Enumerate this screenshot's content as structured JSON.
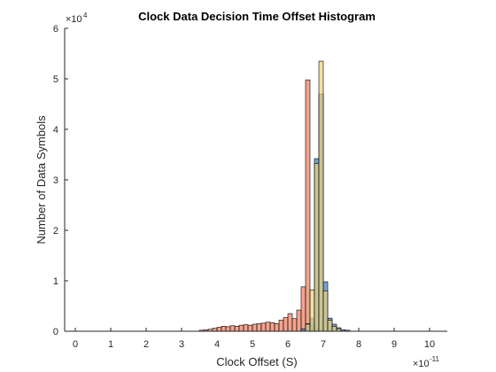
{
  "chart_data": {
    "type": "bar",
    "title": "Clock Data Decision Time Offset Histogram",
    "xlabel": "Clock Offset (S)",
    "ylabel": "Number of Data Symbols",
    "x_exponent_prefix": "×10",
    "x_exponent_power": "-11",
    "y_exponent_prefix": "×10",
    "y_exponent_power": "4",
    "xlim": [
      -0.3,
      10.5
    ],
    "ylim": [
      0,
      6
    ],
    "x_ticks": [
      "0",
      "1",
      "2",
      "3",
      "4",
      "5",
      "6",
      "7",
      "8",
      "9",
      "10"
    ],
    "y_ticks": [
      "0",
      "1",
      "2",
      "3",
      "4",
      "5",
      "6"
    ],
    "grid": false,
    "series": [
      {
        "color": "#ee7c5e",
        "bin_width": 0.125,
        "bins": [
          [
            3.5,
            0.02
          ],
          [
            3.625,
            0.03
          ],
          [
            3.75,
            0.04
          ],
          [
            3.875,
            0.06
          ],
          [
            4.0,
            0.08
          ],
          [
            4.125,
            0.1
          ],
          [
            4.25,
            0.09
          ],
          [
            4.375,
            0.11
          ],
          [
            4.5,
            0.1
          ],
          [
            4.625,
            0.12
          ],
          [
            4.75,
            0.13
          ],
          [
            4.875,
            0.12
          ],
          [
            5.0,
            0.14
          ],
          [
            5.125,
            0.15
          ],
          [
            5.25,
            0.16
          ],
          [
            5.375,
            0.18
          ],
          [
            5.5,
            0.17
          ],
          [
            5.625,
            0.15
          ],
          [
            5.75,
            0.22
          ],
          [
            5.875,
            0.27
          ],
          [
            6.0,
            0.35
          ],
          [
            6.125,
            0.25
          ],
          [
            6.25,
            0.42
          ],
          [
            6.375,
            0.88
          ],
          [
            6.5,
            4.98
          ],
          [
            6.625,
            0.12
          ],
          [
            6.75,
            0.05
          ]
        ]
      },
      {
        "color": "#3a7fc1",
        "bin_width": 0.125,
        "bins": [
          [
            6.375,
            0.05
          ],
          [
            6.5,
            0.15
          ],
          [
            6.625,
            0.25
          ],
          [
            6.75,
            3.42
          ],
          [
            6.875,
            4.7
          ],
          [
            7.0,
            0.98
          ],
          [
            7.125,
            0.26
          ],
          [
            7.25,
            0.14
          ],
          [
            7.375,
            0.07
          ],
          [
            7.5,
            0.03
          ],
          [
            7.625,
            0.02
          ]
        ]
      },
      {
        "color": "#edd27a",
        "bin_width": 0.125,
        "bins": [
          [
            6.5,
            0.14
          ],
          [
            6.625,
            0.82
          ],
          [
            6.75,
            3.32
          ],
          [
            6.875,
            5.35
          ],
          [
            7.0,
            0.8
          ],
          [
            7.125,
            0.22
          ],
          [
            7.25,
            0.1
          ],
          [
            7.375,
            0.05
          ]
        ]
      }
    ]
  }
}
